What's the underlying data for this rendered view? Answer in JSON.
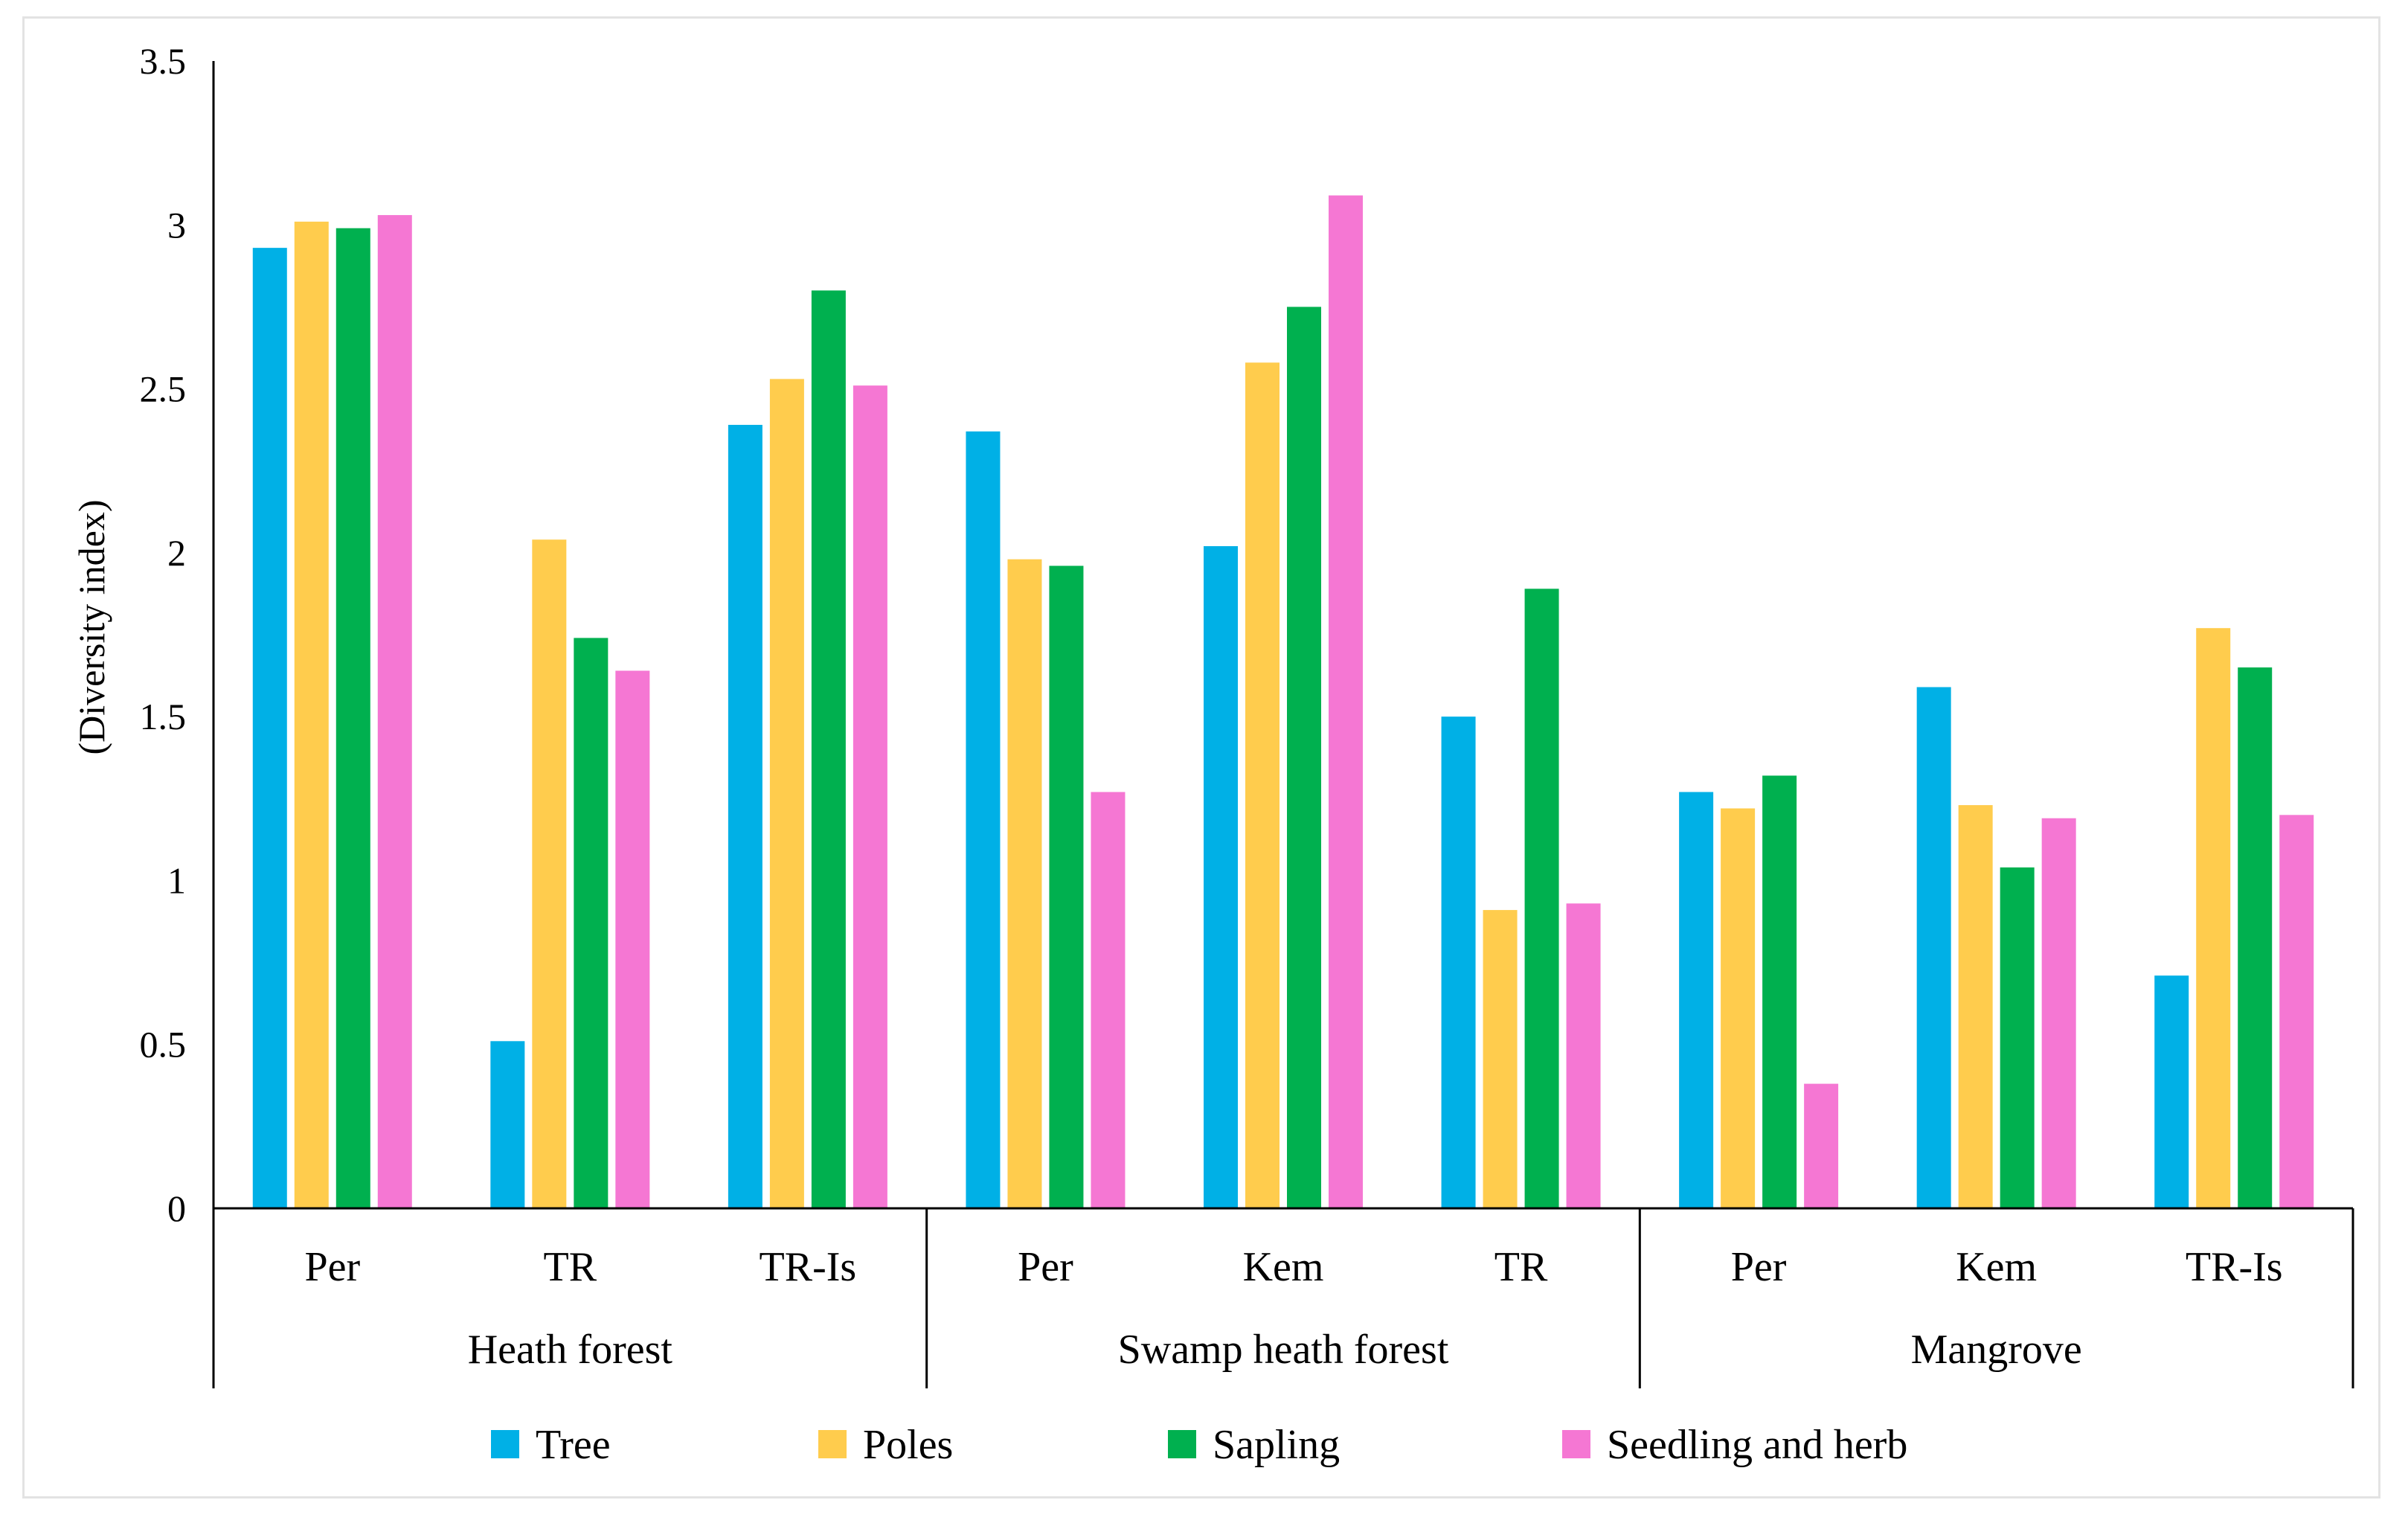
{
  "chart_data": {
    "type": "bar",
    "title": "",
    "xlabel": "",
    "ylabel": "(Diversity index)",
    "ylim": [
      0,
      3.5
    ],
    "yticks": [
      "0",
      "0.5",
      "1",
      "1.5",
      "2",
      "2.5",
      "3",
      "3.5"
    ],
    "grid": false,
    "legend_position": "bottom",
    "groups": [
      {
        "name": "Heath forest",
        "categories": [
          "Per",
          "TR",
          "TR-Is"
        ]
      },
      {
        "name": "Swamp heath forest",
        "categories": [
          "Per",
          "Kem",
          "TR"
        ]
      },
      {
        "name": "Mangrove",
        "categories": [
          "Per",
          "Kem",
          "TR-Is"
        ]
      }
    ],
    "categories": [
      "Per",
      "TR",
      "TR-Is",
      "Per",
      "Kem",
      "TR",
      "Per",
      "Kem",
      "TR-Is"
    ],
    "series": [
      {
        "name": "Tree",
        "color": "#00b0e6",
        "values": [
          2.93,
          0.51,
          2.39,
          2.37,
          2.02,
          1.5,
          1.27,
          1.59,
          0.71
        ]
      },
      {
        "name": "Poles",
        "color": "#ffcc4d",
        "values": [
          3.01,
          2.04,
          2.53,
          1.98,
          2.58,
          0.91,
          1.22,
          1.23,
          1.77
        ]
      },
      {
        "name": "Sapling",
        "color": "#00b04f",
        "values": [
          2.99,
          1.74,
          2.8,
          1.96,
          2.75,
          1.89,
          1.32,
          1.04,
          1.65
        ]
      },
      {
        "name": "Seedling and herb",
        "color": "#f577d3",
        "values": [
          3.03,
          1.64,
          2.51,
          1.27,
          3.09,
          0.93,
          0.38,
          1.19,
          1.2
        ]
      }
    ]
  }
}
